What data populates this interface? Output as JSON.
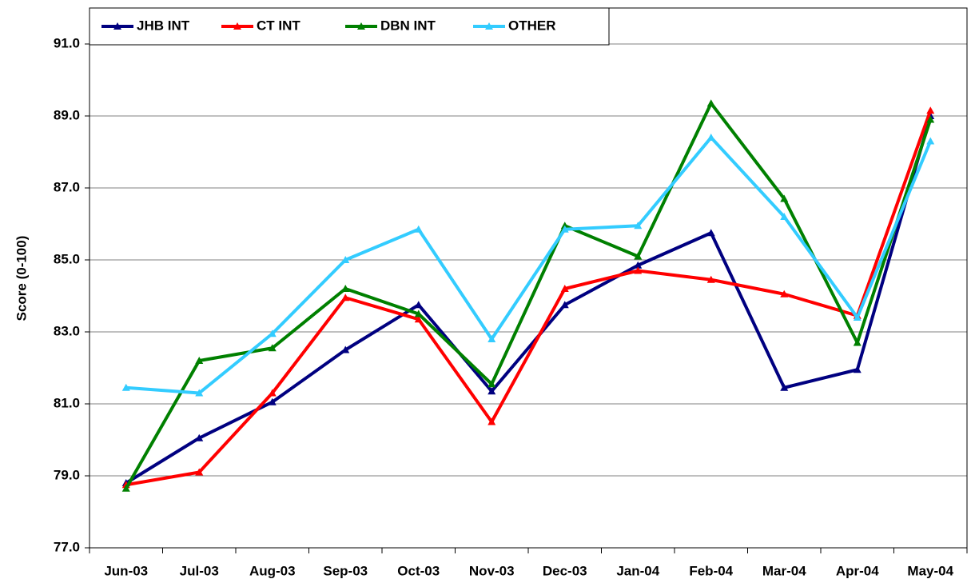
{
  "chart_data": {
    "type": "line",
    "y_label": "Score (0-100)",
    "categories": [
      "Jun-03",
      "Jul-03",
      "Aug-03",
      "Sep-03",
      "Oct-03",
      "Nov-03",
      "Dec-03",
      "Jan-04",
      "Feb-04",
      "Mar-04",
      "Apr-04",
      "May-04"
    ],
    "series": [
      {
        "name": "JHB INT",
        "color": "#000080",
        "values": [
          78.8,
          80.05,
          81.05,
          82.5,
          83.75,
          81.35,
          83.75,
          84.85,
          85.75,
          81.45,
          81.95,
          89.0
        ]
      },
      {
        "name": "CT INT",
        "color": "#ff0000",
        "values": [
          78.75,
          79.1,
          81.3,
          83.95,
          83.35,
          80.5,
          84.2,
          84.7,
          84.45,
          84.05,
          83.45,
          89.15
        ]
      },
      {
        "name": "DBN INT",
        "color": "#008000",
        "values": [
          78.65,
          82.2,
          82.55,
          84.2,
          83.5,
          81.55,
          85.95,
          85.1,
          89.35,
          86.7,
          82.7,
          88.9
        ]
      },
      {
        "name": "OTHER",
        "color": "#33ccff",
        "values": [
          81.45,
          81.3,
          82.95,
          85.0,
          85.85,
          82.8,
          85.85,
          85.95,
          88.4,
          86.2,
          83.4,
          88.3
        ]
      }
    ],
    "ylim": [
      77,
      92
    ],
    "yticks": [
      {
        "value": 77,
        "label": "77.0"
      },
      {
        "value": 79,
        "label": "79.0"
      },
      {
        "value": 81,
        "label": "81.0"
      },
      {
        "value": 83,
        "label": "83.0"
      },
      {
        "value": 85,
        "label": "85.0"
      },
      {
        "value": 87,
        "label": "87.0"
      },
      {
        "value": 89,
        "label": "89.0"
      },
      {
        "value": 91,
        "label": "91.0"
      }
    ],
    "grid": true,
    "legend": "top-left"
  }
}
